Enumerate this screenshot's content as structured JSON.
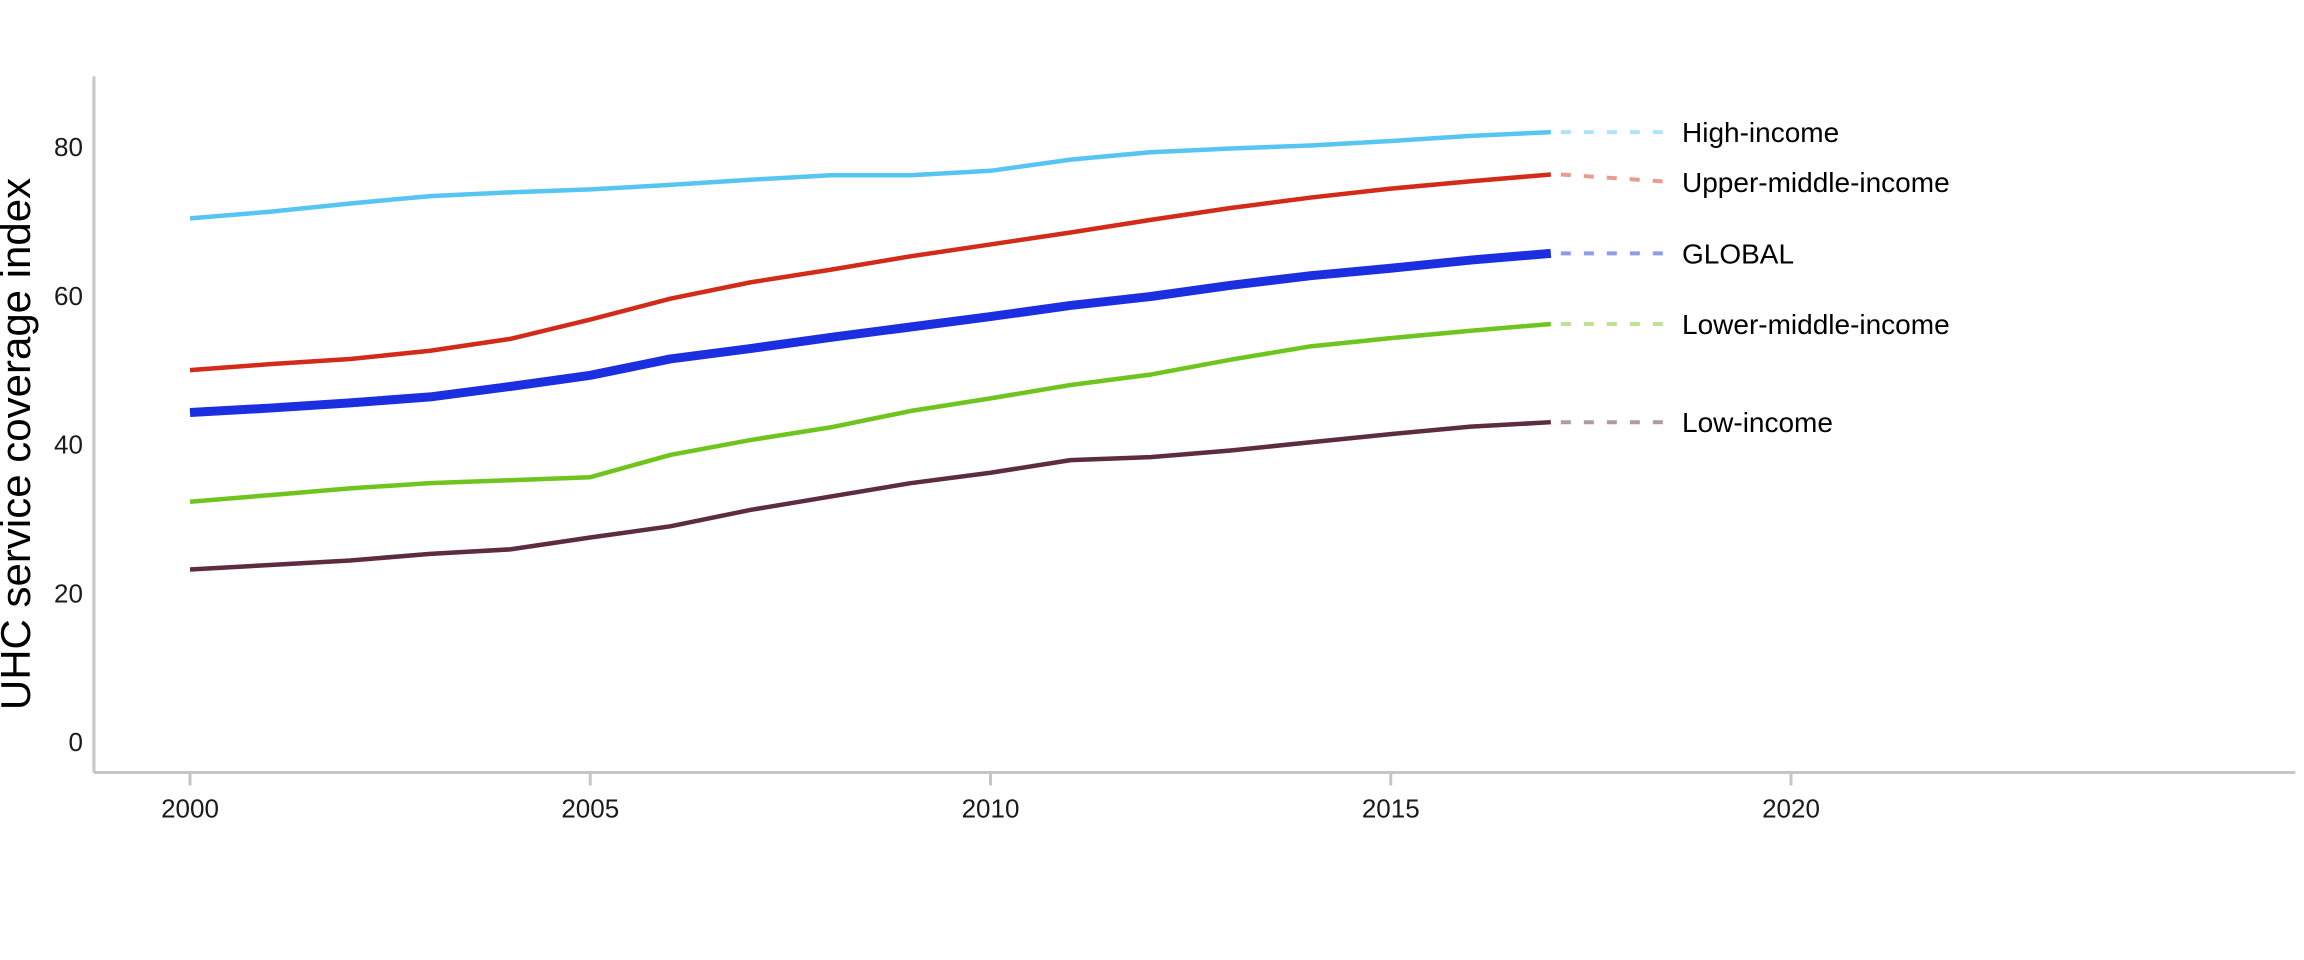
{
  "figure": {
    "background": "#ffffff",
    "axis_color": "#c6c6c6",
    "tick_label_color": "#1a1a1a",
    "series_label_color": "#000000"
  },
  "chart_data": {
    "type": "line",
    "title": "",
    "xlabel": "",
    "ylabel": "UHC service coverage index",
    "grid": false,
    "legend_position": "direct-labels-right",
    "xlim": [
      1998.8,
      2026.3
    ],
    "ylim": [
      -4.1,
      89.5
    ],
    "x_ticks": [
      2000,
      2005,
      2010,
      2015,
      2020
    ],
    "y_ticks": [
      0,
      20,
      40,
      60,
      80
    ],
    "x": [
      2000,
      2001,
      2002,
      2003,
      2004,
      2005,
      2006,
      2007,
      2008,
      2009,
      2010,
      2011,
      2012,
      2013,
      2014,
      2015,
      2016,
      2017
    ],
    "series": [
      {
        "name": "High-income",
        "color": "#56c5f2",
        "leader_color": "#aee3f9",
        "line_width": 4.5,
        "values": [
          70.4,
          71.3,
          72.4,
          73.4,
          73.9,
          74.3,
          74.9,
          75.6,
          76.2,
          76.2,
          76.8,
          78.3,
          79.3,
          79.8,
          80.2,
          80.8,
          81.5,
          82.0
        ]
      },
      {
        "name": "Upper-middle-income",
        "color": "#d32b1a",
        "leader_color": "#ec9a8f",
        "line_width": 4.5,
        "values": [
          50.0,
          50.8,
          51.5,
          52.6,
          54.2,
          56.8,
          59.6,
          61.8,
          63.5,
          65.3,
          66.9,
          68.5,
          70.2,
          71.8,
          73.2,
          74.4,
          75.4,
          76.3
        ]
      },
      {
        "name": "GLOBAL",
        "color": "#1c2fe0",
        "leader_color": "#8f9bee",
        "line_width": 9,
        "values": [
          44.3,
          44.9,
          45.6,
          46.4,
          47.8,
          49.3,
          51.5,
          52.9,
          54.4,
          55.8,
          57.2,
          58.7,
          59.9,
          61.4,
          62.7,
          63.7,
          64.8,
          65.7
        ]
      },
      {
        "name": "Lower-middle-income",
        "color": "#6fc41e",
        "leader_color": "#bce294",
        "line_width": 4.5,
        "values": [
          32.3,
          33.2,
          34.1,
          34.8,
          35.2,
          35.6,
          38.6,
          40.6,
          42.3,
          44.5,
          46.2,
          48.0,
          49.4,
          51.4,
          53.2,
          54.3,
          55.3,
          56.2
        ]
      },
      {
        "name": "Low-income",
        "color": "#5e2c40",
        "leader_color": "#b29aa5",
        "line_width": 4.5,
        "values": [
          23.2,
          23.8,
          24.4,
          25.3,
          25.9,
          27.5,
          29.0,
          31.2,
          33.0,
          34.8,
          36.2,
          37.9,
          38.3,
          39.2,
          40.3,
          41.4,
          42.4,
          43.0
        ]
      }
    ]
  }
}
